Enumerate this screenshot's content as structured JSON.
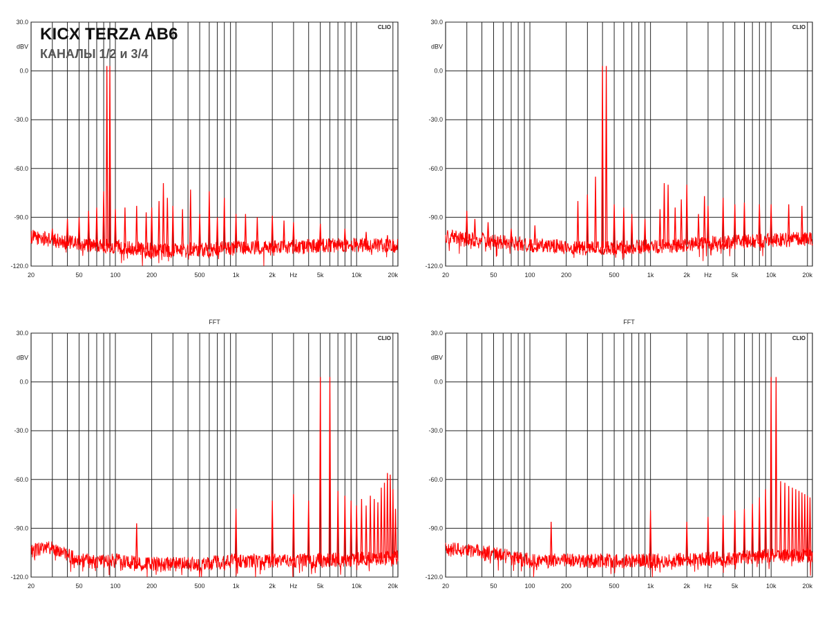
{
  "header": {
    "title": "KICX TERZA AB6",
    "subtitle": "КАНАЛЫ 1/2 и 3/4"
  },
  "chart_data": [
    {
      "type": "line",
      "title": "",
      "watermark": "CLIO",
      "xlabel": "Hz",
      "ylabel": "dBV",
      "xscale": "log",
      "xlim": [
        20,
        22000
      ],
      "ylim": [
        -120,
        30
      ],
      "y_ticks": [
        "30.0",
        "0.0",
        "-30.0",
        "-60.0",
        "-90.0",
        "-120.0"
      ],
      "y_tick_values": [
        30,
        0,
        -30,
        -60,
        -90,
        -120
      ],
      "x_ticks": [
        "20",
        "50",
        "100",
        "200",
        "500",
        "1k",
        "2k",
        "Hz",
        "5k",
        "10k",
        "20k"
      ],
      "x_tick_values": [
        20,
        50,
        100,
        200,
        500,
        1000,
        2000,
        3000,
        5000,
        10000,
        20000
      ],
      "grid": true,
      "line_color": "#ff0000",
      "series": [
        {
          "noise_floor": [
            [
              20,
              -102
            ],
            [
              30,
              -104
            ],
            [
              60,
              -107
            ],
            [
              100,
              -108
            ],
            [
              200,
              -110
            ],
            [
              500,
              -110
            ],
            [
              1000,
              -109
            ],
            [
              3000,
              -108
            ],
            [
              10000,
              -107
            ],
            [
              22000,
              -108
            ]
          ],
          "peaks": [
            [
              30,
              -97
            ],
            [
              40,
              -91
            ],
            [
              50,
              -90
            ],
            [
              60,
              -86
            ],
            [
              70,
              -84
            ],
            [
              80,
              -74
            ],
            [
              85,
              3
            ],
            [
              90,
              3
            ],
            [
              100,
              -85
            ],
            [
              120,
              -84
            ],
            [
              150,
              -83
            ],
            [
              180,
              -87
            ],
            [
              200,
              -84
            ],
            [
              230,
              -80
            ],
            [
              250,
              -69
            ],
            [
              270,
              -78
            ],
            [
              300,
              -83
            ],
            [
              360,
              -85
            ],
            [
              420,
              -73
            ],
            [
              500,
              -88
            ],
            [
              600,
              -74
            ],
            [
              700,
              -90
            ],
            [
              800,
              -78
            ],
            [
              1000,
              -88
            ],
            [
              1200,
              -88
            ],
            [
              1500,
              -90
            ],
            [
              2000,
              -89
            ],
            [
              2500,
              -92
            ],
            [
              3000,
              -93
            ],
            [
              5000,
              -94
            ],
            [
              8000,
              -97
            ],
            [
              12000,
              -99
            ],
            [
              18000,
              -101
            ]
          ]
        }
      ]
    },
    {
      "type": "line",
      "title": "",
      "watermark": "CLIO",
      "xlabel": "Hz",
      "ylabel": "dBV",
      "xscale": "log",
      "xlim": [
        20,
        22000
      ],
      "ylim": [
        -120,
        30
      ],
      "y_ticks": [
        "30.0",
        "0.0",
        "-30.0",
        "-60.0",
        "-90.0",
        "-120.0"
      ],
      "y_tick_values": [
        30,
        0,
        -30,
        -60,
        -90,
        -120
      ],
      "x_ticks": [
        "20",
        "50",
        "100",
        "200",
        "500",
        "1k",
        "2k",
        "Hz",
        "5k",
        "10k",
        "20k"
      ],
      "x_tick_values": [
        20,
        50,
        100,
        200,
        500,
        1000,
        2000,
        3000,
        5000,
        10000,
        20000
      ],
      "grid": true,
      "line_color": "#ff0000",
      "series": [
        {
          "noise_floor": [
            [
              20,
              -102
            ],
            [
              40,
              -104
            ],
            [
              100,
              -107
            ],
            [
              300,
              -109
            ],
            [
              1000,
              -108
            ],
            [
              3000,
              -106
            ],
            [
              10000,
              -104
            ],
            [
              22000,
              -103
            ]
          ],
          "peaks": [
            [
              30,
              -86
            ],
            [
              35,
              -91
            ],
            [
              45,
              -93
            ],
            [
              70,
              -97
            ],
            [
              110,
              -95
            ],
            [
              250,
              -80
            ],
            [
              300,
              -76
            ],
            [
              350,
              -65
            ],
            [
              400,
              3
            ],
            [
              430,
              3
            ],
            [
              500,
              -82
            ],
            [
              600,
              -84
            ],
            [
              700,
              -88
            ],
            [
              900,
              -91
            ],
            [
              1200,
              -85
            ],
            [
              1300,
              -69
            ],
            [
              1400,
              -70
            ],
            [
              1600,
              -84
            ],
            [
              1800,
              -79
            ],
            [
              2000,
              -70
            ],
            [
              2500,
              -88
            ],
            [
              2800,
              -77
            ],
            [
              3000,
              -83
            ],
            [
              4000,
              -78
            ],
            [
              5000,
              -82
            ],
            [
              6000,
              -81
            ],
            [
              8000,
              -82
            ],
            [
              10000,
              -82
            ],
            [
              14000,
              -82
            ],
            [
              18000,
              -83
            ]
          ]
        }
      ]
    },
    {
      "type": "line",
      "title": "FFT",
      "watermark": "CLIO",
      "xlabel": "Hz",
      "ylabel": "dBV",
      "xscale": "log",
      "xlim": [
        20,
        22000
      ],
      "ylim": [
        -120,
        30
      ],
      "y_ticks": [
        "30.0",
        "0.0",
        "-30.0",
        "-60.0",
        "-90.0",
        "-120.0"
      ],
      "y_tick_values": [
        30,
        0,
        -30,
        -60,
        -90,
        -120
      ],
      "x_ticks": [
        "20",
        "50",
        "100",
        "200",
        "500",
        "1k",
        "2k",
        "Hz",
        "5k",
        "10k",
        "20k"
      ],
      "x_tick_values": [
        20,
        50,
        100,
        200,
        500,
        1000,
        2000,
        3000,
        5000,
        10000,
        20000
      ],
      "grid": true,
      "line_color": "#ff0000",
      "series": [
        {
          "noise_floor": [
            [
              20,
              -104
            ],
            [
              30,
              -102
            ],
            [
              50,
              -110
            ],
            [
              100,
              -110
            ],
            [
              200,
              -112
            ],
            [
              500,
              -112
            ],
            [
              1000,
              -110
            ],
            [
              3000,
              -110
            ],
            [
              10000,
              -109
            ],
            [
              22000,
              -108
            ]
          ],
          "peaks": [
            [
              150,
              -87
            ],
            [
              1000,
              -78
            ],
            [
              2000,
              -73
            ],
            [
              3000,
              -69
            ],
            [
              4000,
              -73
            ],
            [
              5000,
              3
            ],
            [
              6000,
              3
            ],
            [
              7000,
              -67
            ],
            [
              8000,
              -70
            ],
            [
              9000,
              -73
            ],
            [
              10000,
              -76
            ],
            [
              11000,
              -72
            ],
            [
              12000,
              -76
            ],
            [
              13000,
              -70
            ],
            [
              14000,
              -72
            ],
            [
              15000,
              -74
            ],
            [
              16000,
              -65
            ],
            [
              17000,
              -62
            ],
            [
              18000,
              -56
            ],
            [
              19000,
              -57
            ],
            [
              20000,
              -66
            ],
            [
              21000,
              -78
            ]
          ]
        }
      ]
    },
    {
      "type": "line",
      "title": "FFT",
      "watermark": "CLIO",
      "xlabel": "Hz",
      "ylabel": "dBV",
      "xscale": "log",
      "xlim": [
        20,
        22000
      ],
      "ylim": [
        -120,
        30
      ],
      "y_ticks": [
        "30.0",
        "0.0",
        "-30.0",
        "-60.0",
        "-90.0",
        "-120.0"
      ],
      "y_tick_values": [
        30,
        0,
        -30,
        -60,
        -90,
        -120
      ],
      "x_ticks": [
        "20",
        "50",
        "100",
        "200",
        "500",
        "1k",
        "2k",
        "Hz",
        "5k",
        "10k",
        "20k"
      ],
      "x_tick_values": [
        20,
        50,
        100,
        200,
        500,
        1000,
        2000,
        3000,
        5000,
        10000,
        20000
      ],
      "grid": true,
      "line_color": "#ff0000",
      "series": [
        {
          "noise_floor": [
            [
              20,
              -103
            ],
            [
              40,
              -104
            ],
            [
              100,
              -110
            ],
            [
              300,
              -110
            ],
            [
              1000,
              -110
            ],
            [
              3000,
              -109
            ],
            [
              10000,
              -107
            ],
            [
              22000,
              -107
            ]
          ],
          "peaks": [
            [
              150,
              -86
            ],
            [
              1000,
              -79
            ],
            [
              2000,
              -86
            ],
            [
              3000,
              -83
            ],
            [
              4000,
              -82
            ],
            [
              5000,
              -79
            ],
            [
              6000,
              -78
            ],
            [
              7000,
              -75
            ],
            [
              8000,
              -71
            ],
            [
              9000,
              -66
            ],
            [
              10000,
              3
            ],
            [
              11000,
              3
            ],
            [
              12000,
              -61
            ],
            [
              13000,
              -62
            ],
            [
              14000,
              -64
            ],
            [
              15000,
              -65
            ],
            [
              16000,
              -66
            ],
            [
              17000,
              -67
            ],
            [
              18000,
              -68
            ],
            [
              19000,
              -69
            ],
            [
              20000,
              -70
            ],
            [
              21000,
              -71
            ]
          ]
        }
      ]
    }
  ]
}
